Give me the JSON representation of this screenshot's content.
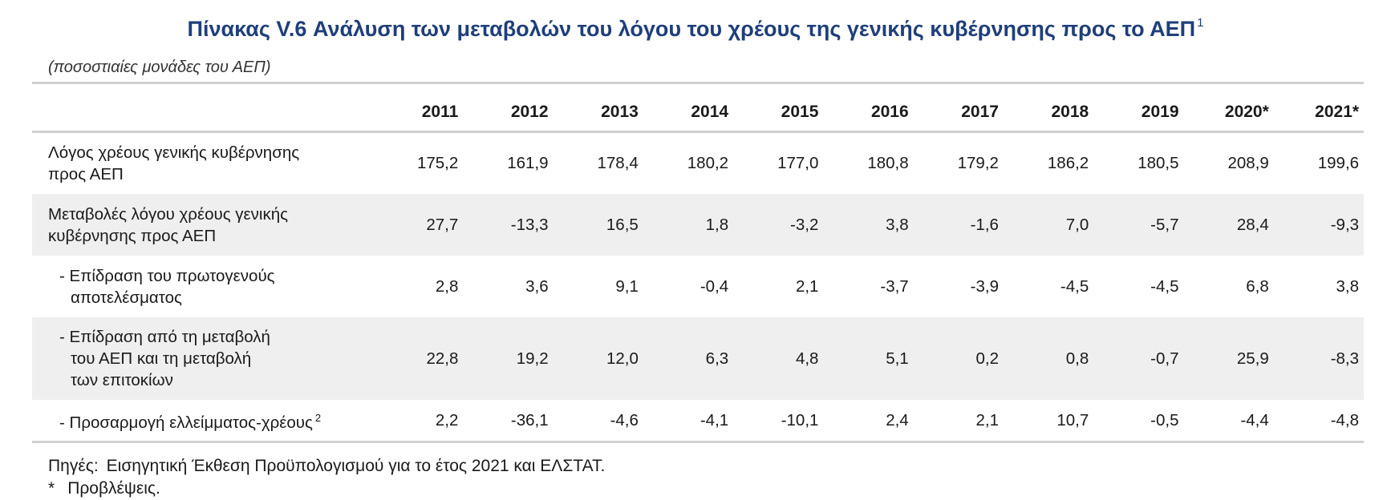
{
  "title": "Πίνακας V.6 Ανάλυση των μεταβολών του λόγου του χρέους της γενικής κυβέρνησης προς το ΑΕΠ",
  "title_note": "1",
  "subtitle": "(ποσοστιαίες μονάδες του ΑΕΠ)",
  "years": [
    "2011",
    "2012",
    "2013",
    "2014",
    "2015",
    "2016",
    "2017",
    "2018",
    "2019",
    "2020*",
    "2021*"
  ],
  "rows": [
    {
      "label_lines": [
        "Λόγος χρέους γενικής κυβέρνησης",
        "προς ΑΕΠ"
      ],
      "values": [
        "175,2",
        "161,9",
        "178,4",
        "180,2",
        "177,0",
        "180,8",
        "179,2",
        "186,2",
        "180,5",
        "208,9",
        "199,6"
      ]
    },
    {
      "label_lines": [
        "Μεταβολές λόγου χρέους γενικής",
        "κυβέρνησης προς ΑΕΠ"
      ],
      "values": [
        "27,7",
        "-13,3",
        "16,5",
        "1,8",
        "-3,2",
        "3,8",
        "-1,6",
        "7,0",
        "-5,7",
        "28,4",
        "-9,3"
      ]
    },
    {
      "label_lines": [
        "- Επίδραση του πρωτογενούς",
        "αποτελέσματος"
      ],
      "values": [
        "2,8",
        "3,6",
        "9,1",
        "-0,4",
        "2,1",
        "-3,7",
        "-3,9",
        "-4,5",
        "-4,5",
        "6,8",
        "3,8"
      ]
    },
    {
      "label_lines": [
        "- Επίδραση από τη μεταβολή",
        "του ΑΕΠ και τη μεταβολή",
        "των επιτοκίων"
      ],
      "values": [
        "22,8",
        "19,2",
        "12,0",
        "6,3",
        "4,8",
        "5,1",
        "0,2",
        "0,8",
        "-0,7",
        "25,9",
        "-8,3"
      ]
    },
    {
      "label_lines": [
        "- Προσαρμογή ελλείμματος-χρέους"
      ],
      "label_note": "2",
      "values": [
        "2,2",
        "-36,1",
        "-4,6",
        "-4,1",
        "-10,1",
        "2,4",
        "2,1",
        "10,7",
        "-0,5",
        "-4,4",
        "-4,8"
      ]
    }
  ],
  "footer": {
    "sources_label": "Πηγές:",
    "sources_text": "Εισηγητική Έκθεση Προϋπολογισμού για το έτος 2021 και ΕΛΣΤΑΤ.",
    "forecast_mark": "*",
    "forecast_text": "Προβλέψεις."
  },
  "colors": {
    "title": "#1f3f7a",
    "stripe": "#efefef",
    "rule": "#d0d0d0"
  }
}
